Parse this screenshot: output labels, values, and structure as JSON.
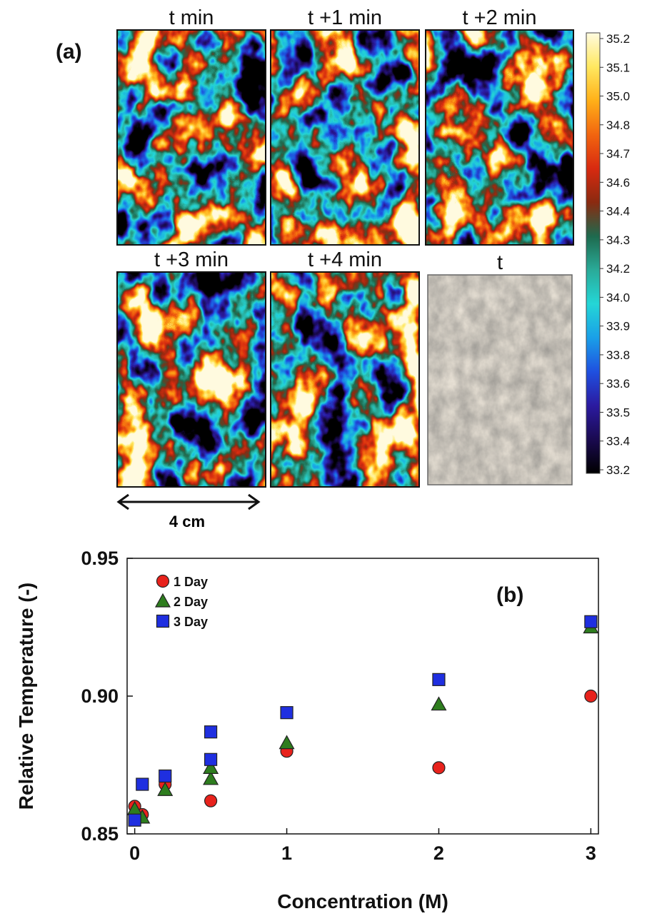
{
  "panel_a": {
    "label": "(a)",
    "frames": [
      {
        "title": "t min",
        "type": "thermal",
        "seed": 11
      },
      {
        "title": "t +1 min",
        "type": "thermal",
        "seed": 23
      },
      {
        "title": "t +2 min",
        "type": "thermal",
        "seed": 37
      },
      {
        "title": "t +3 min",
        "type": "thermal",
        "seed": 41
      },
      {
        "title": "t +4 min",
        "type": "thermal",
        "seed": 53
      },
      {
        "title": "t",
        "type": "photo",
        "seed": 67
      }
    ],
    "scale_label": "4 cm",
    "colorbar": {
      "ticks": [
        "35.2",
        "35.1",
        "35.0",
        "34.8",
        "34.7",
        "34.6",
        "34.4",
        "34.3",
        "34.2",
        "34.0",
        "33.9",
        "33.8",
        "33.6",
        "33.5",
        "33.4",
        "33.2"
      ],
      "colors": [
        "#000000",
        "#1a0a50",
        "#2b1aa0",
        "#1f50e0",
        "#1aa0e8",
        "#24d6d6",
        "#2aaa98",
        "#1e6a4e",
        "#8a2a10",
        "#d82a10",
        "#f2650f",
        "#ffb018",
        "#ffe860",
        "#fffbe0"
      ]
    }
  },
  "chart_data": {
    "type": "scatter",
    "panel_label": "(b)",
    "xlabel": "Concentration  (M)",
    "ylabel": "Relative Temperature  (-)",
    "xlim": [
      -0.05,
      3.05
    ],
    "ylim": [
      0.85,
      0.95
    ],
    "xticks": [
      0,
      1,
      2,
      3
    ],
    "yticks": [
      0.85,
      0.9,
      0.95
    ],
    "ytick_labels": [
      "0.85",
      "0.90",
      "0.95"
    ],
    "legend_position": "top-left",
    "series": [
      {
        "name": "1 Day",
        "marker": "circle",
        "color": "#e8221c",
        "x": [
          0,
          0.05,
          0.2,
          0.5,
          1,
          2,
          3
        ],
        "y": [
          0.86,
          0.857,
          0.868,
          0.862,
          0.88,
          0.874,
          0.9
        ]
      },
      {
        "name": "2 Day",
        "marker": "triangle",
        "color": "#2e7d1e",
        "x": [
          0,
          0.05,
          0.2,
          0.5,
          0.5,
          1,
          2,
          3
        ],
        "y": [
          0.859,
          0.856,
          0.866,
          0.87,
          0.874,
          0.883,
          0.897,
          0.925
        ]
      },
      {
        "name": "3 Day",
        "marker": "square",
        "color": "#1f2fe0",
        "x": [
          0,
          0.05,
          0.2,
          0.5,
          0.5,
          1,
          2,
          3
        ],
        "y": [
          0.855,
          0.868,
          0.871,
          0.877,
          0.887,
          0.894,
          0.906,
          0.927
        ]
      }
    ]
  }
}
